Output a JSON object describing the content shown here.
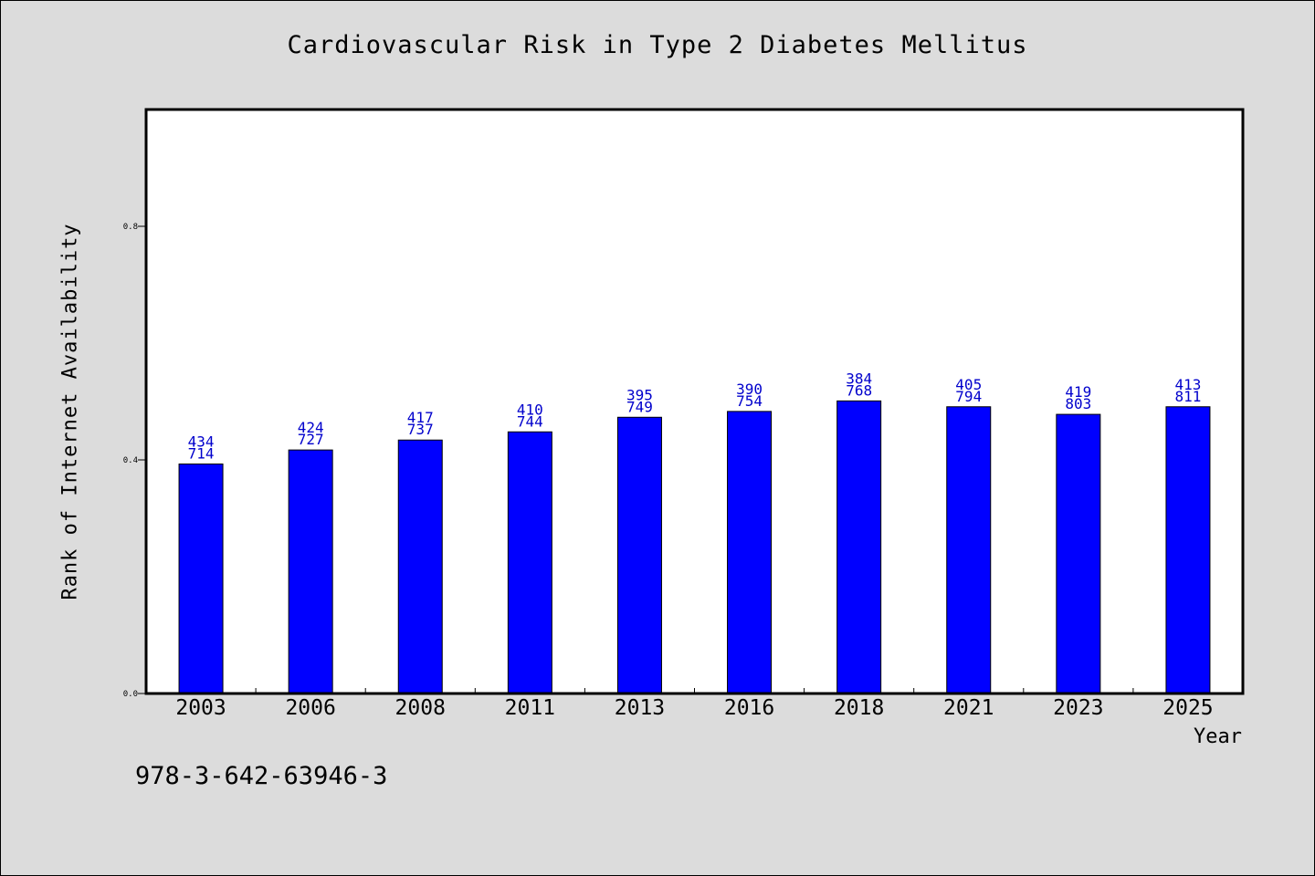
{
  "chart_data": {
    "type": "bar",
    "title": "Cardiovascular Risk in Type 2 Diabetes Mellitus",
    "xlabel": "Year",
    "ylabel": "Rank of Internet Availability",
    "categories": [
      "2003",
      "2006",
      "2008",
      "2011",
      "2013",
      "2016",
      "2018",
      "2021",
      "2023",
      "2025"
    ],
    "values": [
      0.393,
      0.417,
      0.434,
      0.448,
      0.473,
      0.483,
      0.501,
      0.491,
      0.478,
      0.491
    ],
    "data_labels_top": [
      "434",
      "424",
      "417",
      "410",
      "395",
      "390",
      "384",
      "405",
      "419",
      "413"
    ],
    "data_labels_bottom": [
      "714",
      "727",
      "737",
      "744",
      "749",
      "754",
      "768",
      "794",
      "803",
      "811"
    ],
    "ylim": [
      0,
      1.0
    ],
    "yticks": [
      "0.0",
      "0.4",
      "0.8"
    ],
    "ytick_values": [
      0.0,
      0.4,
      0.8
    ],
    "grid": false,
    "colors": {
      "bar": "#0000ff",
      "label": "#0000cc",
      "axes": "#000000",
      "plot_bg": "#ffffff",
      "page_bg": "#dcdcdc"
    }
  },
  "footer_text": "978-3-642-63946-3"
}
